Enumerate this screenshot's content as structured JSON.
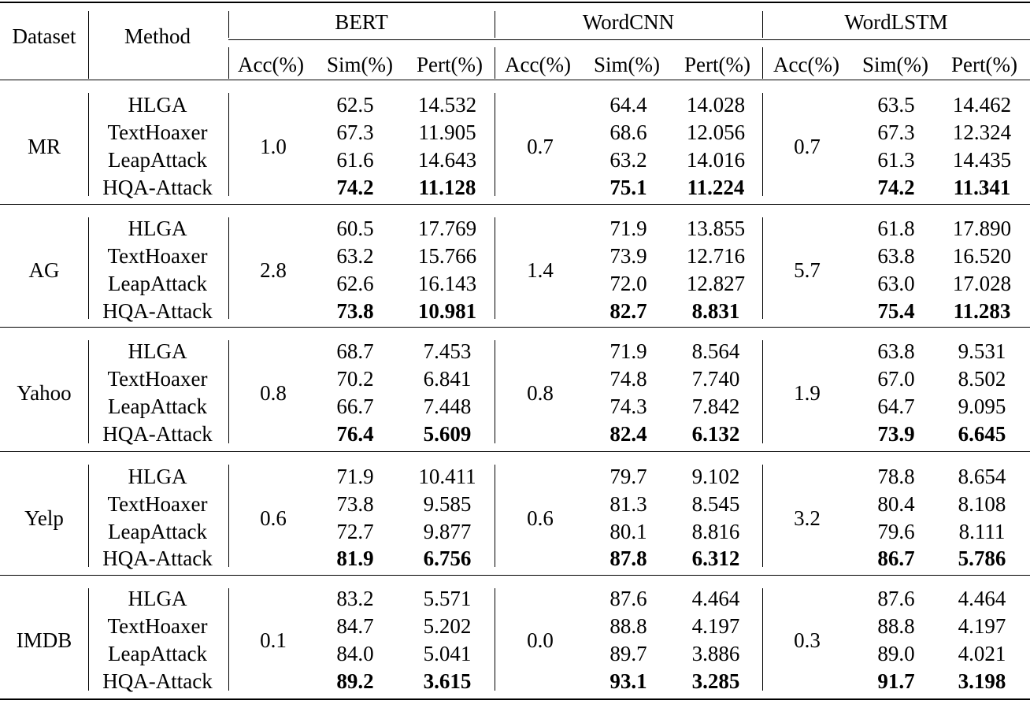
{
  "header": {
    "dataset": "Dataset",
    "method": "Method",
    "models": [
      "BERT",
      "WordCNN",
      "WordLSTM"
    ],
    "metrics": [
      "Acc(%)",
      "Sim(%)",
      "Pert(%)"
    ]
  },
  "groups": [
    {
      "dataset": "MR",
      "acc": [
        "1.0",
        "0.7",
        "0.7"
      ],
      "rows": [
        {
          "method": "HLGA",
          "vals": [
            "62.5",
            "14.532",
            "64.4",
            "14.028",
            "63.5",
            "14.462"
          ]
        },
        {
          "method": "TextHoaxer",
          "vals": [
            "67.3",
            "11.905",
            "68.6",
            "12.056",
            "67.3",
            "12.324"
          ]
        },
        {
          "method": "LeapAttack",
          "vals": [
            "61.6",
            "14.643",
            "63.2",
            "14.016",
            "61.3",
            "14.435"
          ]
        },
        {
          "method": "HQA-Attack",
          "vals": [
            "74.2",
            "11.128",
            "75.1",
            "11.224",
            "74.2",
            "11.341"
          ]
        }
      ]
    },
    {
      "dataset": "AG",
      "acc": [
        "2.8",
        "1.4",
        "5.7"
      ],
      "rows": [
        {
          "method": "HLGA",
          "vals": [
            "60.5",
            "17.769",
            "71.9",
            "13.855",
            "61.8",
            "17.890"
          ]
        },
        {
          "method": "TextHoaxer",
          "vals": [
            "63.2",
            "15.766",
            "73.9",
            "12.716",
            "63.8",
            "16.520"
          ]
        },
        {
          "method": "LeapAttack",
          "vals": [
            "62.6",
            "16.143",
            "72.0",
            "12.827",
            "63.0",
            "17.028"
          ]
        },
        {
          "method": "HQA-Attack",
          "vals": [
            "73.8",
            "10.981",
            "82.7",
            "8.831",
            "75.4",
            "11.283"
          ]
        }
      ]
    },
    {
      "dataset": "Yahoo",
      "acc": [
        "0.8",
        "0.8",
        "1.9"
      ],
      "rows": [
        {
          "method": "HLGA",
          "vals": [
            "68.7",
            "7.453",
            "71.9",
            "8.564",
            "63.8",
            "9.531"
          ]
        },
        {
          "method": "TextHoaxer",
          "vals": [
            "70.2",
            "6.841",
            "74.8",
            "7.740",
            "67.0",
            "8.502"
          ]
        },
        {
          "method": "LeapAttack",
          "vals": [
            "66.7",
            "7.448",
            "74.3",
            "7.842",
            "64.7",
            "9.095"
          ]
        },
        {
          "method": "HQA-Attack",
          "vals": [
            "76.4",
            "5.609",
            "82.4",
            "6.132",
            "73.9",
            "6.645"
          ]
        }
      ]
    },
    {
      "dataset": "Yelp",
      "acc": [
        "0.6",
        "0.6",
        "3.2"
      ],
      "rows": [
        {
          "method": "HLGA",
          "vals": [
            "71.9",
            "10.411",
            "79.7",
            "9.102",
            "78.8",
            "8.654"
          ]
        },
        {
          "method": "TextHoaxer",
          "vals": [
            "73.8",
            "9.585",
            "81.3",
            "8.545",
            "80.4",
            "8.108"
          ]
        },
        {
          "method": "LeapAttack",
          "vals": [
            "72.7",
            "9.877",
            "80.1",
            "8.816",
            "79.6",
            "8.111"
          ]
        },
        {
          "method": "HQA-Attack",
          "vals": [
            "81.9",
            "6.756",
            "87.8",
            "6.312",
            "86.7",
            "5.786"
          ]
        }
      ]
    },
    {
      "dataset": "IMDB",
      "acc": [
        "0.1",
        "0.0",
        "0.3"
      ],
      "rows": [
        {
          "method": "HLGA",
          "vals": [
            "83.2",
            "5.571",
            "87.6",
            "4.464",
            "87.6",
            "4.464"
          ]
        },
        {
          "method": "TextHoaxer",
          "vals": [
            "84.7",
            "5.202",
            "88.8",
            "4.197",
            "88.8",
            "4.197"
          ]
        },
        {
          "method": "LeapAttack",
          "vals": [
            "84.0",
            "5.041",
            "89.7",
            "3.886",
            "89.0",
            "4.021"
          ]
        },
        {
          "method": "HQA-Attack",
          "vals": [
            "89.2",
            "3.615",
            "93.1",
            "3.285",
            "91.7",
            "3.198"
          ]
        }
      ]
    }
  ]
}
